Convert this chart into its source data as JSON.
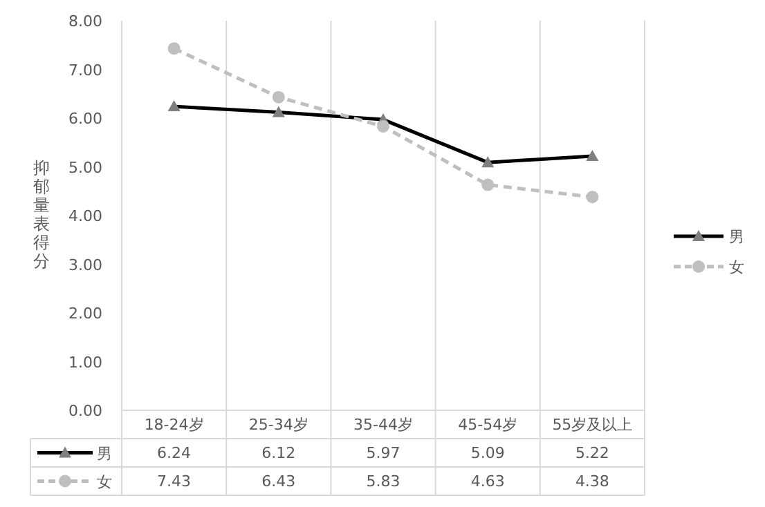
{
  "chart_data": {
    "type": "line",
    "ylabel": "抑郁量表得分",
    "categories": [
      "18-24岁",
      "25-34岁",
      "35-44岁",
      "45-54岁",
      "55岁及以上"
    ],
    "series": [
      {
        "name": "男",
        "color": "#000000",
        "marker": "triangle",
        "line_style": "solid",
        "values": [
          6.24,
          6.12,
          5.97,
          5.09,
          5.22
        ]
      },
      {
        "name": "女",
        "color": "#bfbfbf",
        "marker": "circle",
        "line_style": "dashed",
        "values": [
          7.43,
          6.43,
          5.83,
          4.63,
          4.38
        ]
      }
    ],
    "ylim": [
      0,
      8
    ],
    "yticks": [
      {
        "value": 0,
        "label": "0.00"
      },
      {
        "value": 1,
        "label": "1.00"
      },
      {
        "value": 2,
        "label": "2.00"
      },
      {
        "value": 3,
        "label": "3.00"
      },
      {
        "value": 4,
        "label": "4.00"
      },
      {
        "value": 5,
        "label": "5.00"
      },
      {
        "value": 6,
        "label": "6.00"
      },
      {
        "value": 7,
        "label": "7.00"
      },
      {
        "value": 8,
        "label": "8.00"
      }
    ],
    "grid": "x",
    "legend": "right",
    "data_labels": true
  }
}
